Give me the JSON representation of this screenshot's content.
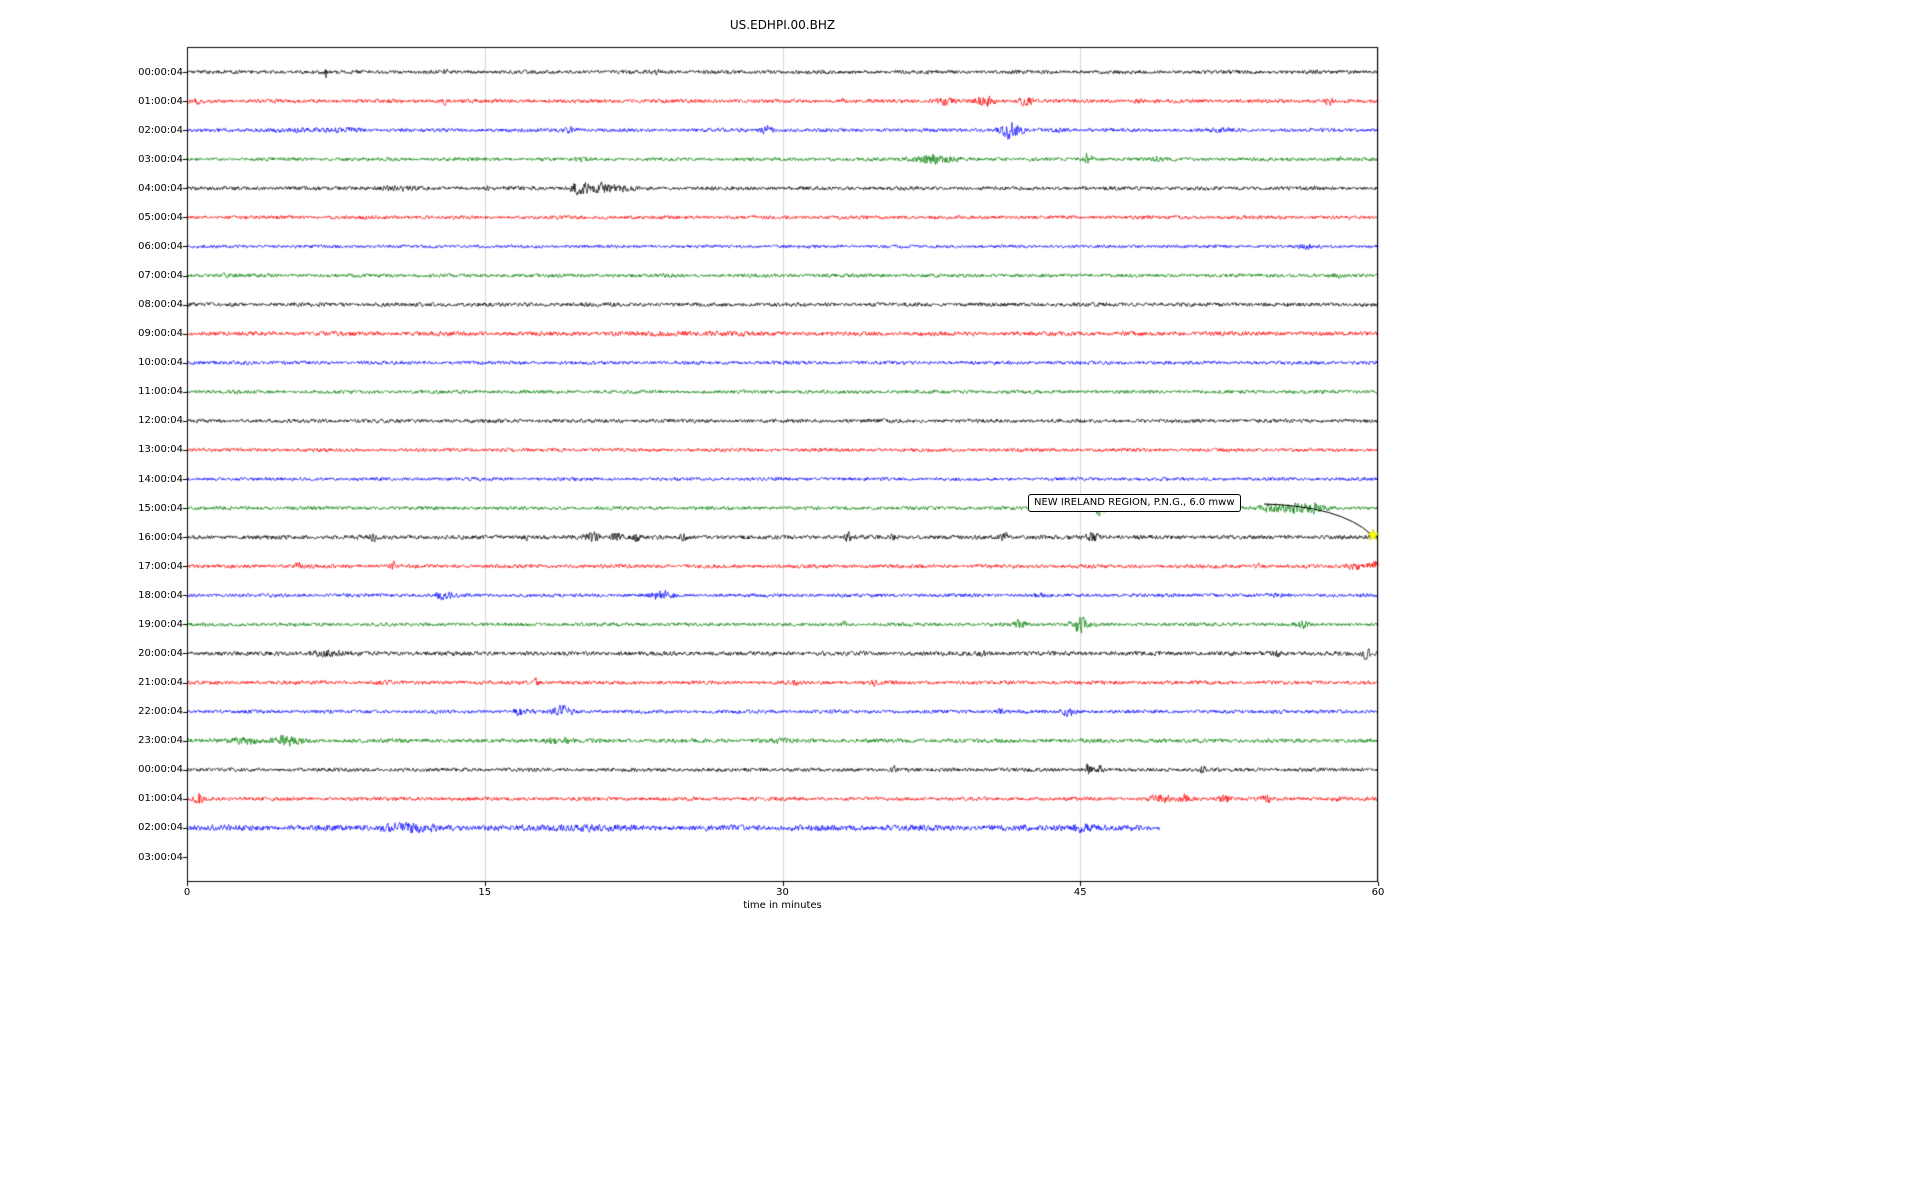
{
  "title": "US.EDHPI.00.BHZ",
  "xlabel": "time in minutes",
  "annotation": {
    "text": "NEW IRELAND REGION, P.N.G., 6.0 mww"
  },
  "chart_data": {
    "type": "line",
    "subtype": "helicorder-day-plot",
    "title": "US.EDHPI.00.BHZ",
    "xlabel": "time in minutes",
    "x_range": [
      0,
      60
    ],
    "x_ticks": [
      "0",
      "15",
      "30",
      "45",
      "60"
    ],
    "x_tick_values": [
      0,
      15,
      30,
      45,
      60
    ],
    "grid": true,
    "grid_color": "#cccccc",
    "frame_color": "#000000",
    "color_cycle": [
      "#000000",
      "#ff0000",
      "#0000ff",
      "#008000"
    ],
    "event_marker": {
      "trace_index": 16,
      "minute": 59.9,
      "symbol": "star",
      "color": "#ffff00"
    },
    "annotation_text": "NEW IRELAND REGION, P.N.G., 6.0 mww",
    "traces": [
      {
        "label": "00:00:04",
        "color": "#000000",
        "amp": 2.0,
        "end": 60,
        "bursts": [
          [
            7,
            7,
            0.05
          ],
          [
            13,
            1.5,
            0.1
          ],
          [
            23.7,
            2.5,
            0.12
          ]
        ]
      },
      {
        "label": "01:00:04",
        "color": "#ff0000",
        "amp": 2.0,
        "end": 60,
        "bursts": [
          [
            0.5,
            3,
            0.08
          ],
          [
            13,
            2.5,
            0.08
          ],
          [
            33,
            2,
            0.1
          ],
          [
            38.2,
            3,
            0.35
          ],
          [
            40.2,
            4.5,
            0.3
          ],
          [
            42.3,
            4.5,
            0.25
          ],
          [
            48,
            1.5,
            0.2
          ],
          [
            57.5,
            3.5,
            0.18
          ]
        ]
      },
      {
        "label": "02:00:04",
        "color": "#0000ff",
        "amp": 1.9,
        "end": 60,
        "bursts": [
          [
            5.5,
            1.2,
            1.2
          ],
          [
            8,
            1.5,
            0.5
          ],
          [
            19.3,
            2.5,
            0.25
          ],
          [
            29.2,
            4.5,
            0.18
          ],
          [
            41.5,
            8,
            0.35
          ],
          [
            44,
            1.5,
            0.3
          ],
          [
            52,
            1,
            0.3
          ]
        ]
      },
      {
        "label": "03:00:04",
        "color": "#008000",
        "amp": 1.9,
        "end": 60,
        "bursts": [
          [
            20,
            1,
            0.3
          ],
          [
            37.6,
            4,
            0.7
          ],
          [
            45.4,
            6.5,
            0.12
          ],
          [
            48.9,
            3.5,
            0.15
          ],
          [
            58,
            1.5,
            0.2
          ]
        ]
      },
      {
        "label": "04:00:04",
        "color": "#000000",
        "amp": 2.0,
        "end": 60,
        "bursts": [
          [
            10.5,
            1.2,
            1.0
          ],
          [
            15.2,
            2,
            0.08
          ],
          [
            19.8,
            6,
            0.35
          ],
          [
            21,
            5,
            0.35
          ],
          [
            22,
            2.5,
            0.3
          ]
        ]
      },
      {
        "label": "05:00:04",
        "color": "#ff0000",
        "amp": 1.9,
        "end": 60,
        "bursts": []
      },
      {
        "label": "06:00:04",
        "color": "#0000ff",
        "amp": 1.7,
        "end": 60,
        "bursts": [
          [
            56.5,
            2,
            0.25
          ]
        ]
      },
      {
        "label": "07:00:04",
        "color": "#008000",
        "amp": 1.9,
        "end": 60,
        "bursts": [
          [
            2,
            1,
            0.3
          ],
          [
            58,
            1.5,
            0.2
          ]
        ]
      },
      {
        "label": "08:00:04",
        "color": "#000000",
        "amp": 2.1,
        "end": 60,
        "bursts": []
      },
      {
        "label": "09:00:04",
        "color": "#ff0000",
        "amp": 2.3,
        "end": 60,
        "bursts": [
          [
            25,
            0.8,
            2
          ]
        ]
      },
      {
        "label": "10:00:04",
        "color": "#0000ff",
        "amp": 1.9,
        "end": 60,
        "bursts": [
          [
            3,
            0.8,
            0.5
          ]
        ]
      },
      {
        "label": "11:00:04",
        "color": "#008000",
        "amp": 1.9,
        "end": 60,
        "bursts": []
      },
      {
        "label": "12:00:04",
        "color": "#000000",
        "amp": 2.0,
        "end": 60,
        "bursts": []
      },
      {
        "label": "13:00:04",
        "color": "#ff0000",
        "amp": 1.9,
        "end": 60,
        "bursts": []
      },
      {
        "label": "14:00:04",
        "color": "#0000ff",
        "amp": 1.8,
        "end": 60,
        "bursts": []
      },
      {
        "label": "15:00:04",
        "color": "#008000",
        "amp": 1.9,
        "end": 60,
        "bursts": [
          [
            46,
            6.5,
            0.25
          ],
          [
            54.6,
            4,
            0.4
          ],
          [
            55.8,
            5,
            0.4
          ],
          [
            56.8,
            4,
            0.35
          ]
        ]
      },
      {
        "label": "16:00:04",
        "color": "#000000",
        "amp": 2.2,
        "end": 60,
        "bursts": [
          [
            9.4,
            3,
            0.08
          ],
          [
            17,
            3.5,
            0.1
          ],
          [
            20.4,
            4.5,
            0.25
          ],
          [
            21.6,
            4.5,
            0.2
          ],
          [
            22.6,
            3.5,
            0.15
          ],
          [
            25,
            2,
            0.15
          ],
          [
            33.3,
            3.5,
            0.1
          ],
          [
            35.6,
            3,
            0.1
          ],
          [
            41.2,
            3.5,
            0.15
          ],
          [
            45.6,
            4.5,
            0.22
          ],
          [
            48,
            2,
            0.1
          ]
        ]
      },
      {
        "label": "17:00:04",
        "color": "#ff0000",
        "amp": 2.0,
        "end": 60,
        "bursts": [
          [
            5.6,
            4,
            0.1
          ],
          [
            10.4,
            4,
            0.1
          ],
          [
            54,
            2.5,
            0.1
          ],
          [
            58.8,
            3,
            0.3
          ],
          [
            59.8,
            5,
            0.2
          ]
        ]
      },
      {
        "label": "18:00:04",
        "color": "#0000ff",
        "amp": 1.9,
        "end": 60,
        "bursts": [
          [
            12.9,
            3,
            0.4
          ],
          [
            23.9,
            3.5,
            0.4
          ],
          [
            43,
            1.5,
            0.2
          ],
          [
            55,
            1.2,
            0.3
          ]
        ]
      },
      {
        "label": "19:00:04",
        "color": "#008000",
        "amp": 1.9,
        "end": 60,
        "bursts": [
          [
            33.1,
            3,
            0.08
          ],
          [
            41.9,
            3.5,
            0.25
          ],
          [
            45,
            7,
            0.3
          ],
          [
            56.2,
            2.5,
            0.2
          ]
        ]
      },
      {
        "label": "20:00:04",
        "color": "#000000",
        "amp": 2.3,
        "end": 60,
        "bursts": [
          [
            7,
            2,
            0.6
          ],
          [
            40,
            2.5,
            0.15
          ],
          [
            54.9,
            3,
            0.15
          ],
          [
            59.4,
            4,
            0.15
          ]
        ]
      },
      {
        "label": "21:00:04",
        "color": "#ff0000",
        "amp": 2.0,
        "end": 60,
        "bursts": [
          [
            10,
            1,
            0.3
          ],
          [
            17.6,
            3.5,
            0.08
          ],
          [
            30.6,
            3.5,
            0.1
          ],
          [
            34.6,
            4.5,
            0.1
          ]
        ]
      },
      {
        "label": "22:00:04",
        "color": "#0000ff",
        "amp": 1.9,
        "end": 60,
        "bursts": [
          [
            16.9,
            3,
            0.35
          ],
          [
            18.9,
            5,
            0.35
          ],
          [
            40.9,
            2.5,
            0.15
          ],
          [
            44.4,
            3.5,
            0.25
          ],
          [
            55,
            1.5,
            0.2
          ]
        ]
      },
      {
        "label": "23:00:04",
        "color": "#008000",
        "amp": 2.2,
        "end": 60,
        "bursts": [
          [
            2.9,
            2.5,
            0.5
          ],
          [
            4.9,
            3.5,
            0.5
          ],
          [
            18.6,
            2.5,
            0.6
          ],
          [
            30,
            1,
            0.4
          ]
        ]
      },
      {
        "label": "00:00:04",
        "color": "#000000",
        "amp": 2.0,
        "end": 60,
        "bursts": [
          [
            35.6,
            5,
            0.1
          ],
          [
            45.4,
            5,
            0.15
          ],
          [
            46,
            3.5,
            0.1
          ],
          [
            51.2,
            4,
            0.1
          ]
        ]
      },
      {
        "label": "01:00:04",
        "color": "#ff0000",
        "amp": 2.0,
        "end": 60,
        "bursts": [
          [
            0.6,
            5,
            0.15
          ],
          [
            49,
            3,
            0.4
          ],
          [
            50.3,
            3,
            0.2
          ],
          [
            52.3,
            3.5,
            0.25
          ],
          [
            54.4,
            3.5,
            0.15
          ],
          [
            58,
            2,
            0.2
          ]
        ]
      },
      {
        "label": "02:00:04",
        "color": "#0000ff",
        "amp": 3.0,
        "end": 49,
        "bursts": [
          [
            11,
            3.5,
            0.8
          ],
          [
            20,
            1.5,
            1
          ],
          [
            45,
            3,
            0.5
          ]
        ]
      },
      {
        "label": "03:00:04",
        "color": "#008000",
        "amp": 0,
        "end": 0,
        "bursts": []
      }
    ]
  }
}
